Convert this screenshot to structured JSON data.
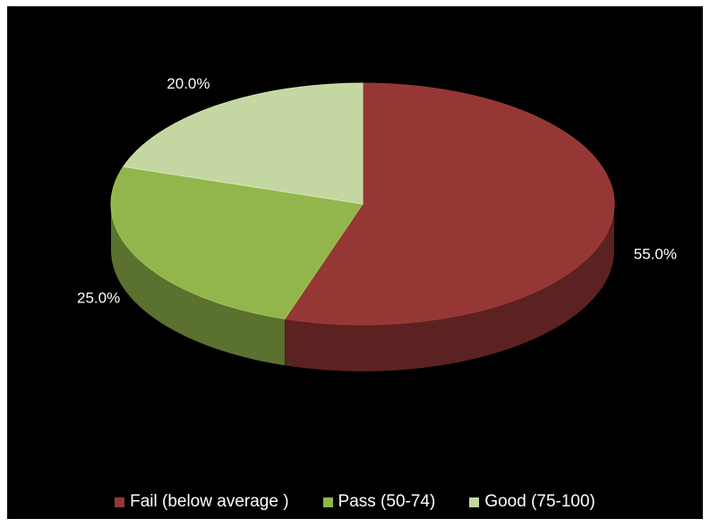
{
  "chart_data": {
    "type": "pie",
    "style": "3d",
    "title": "",
    "categories": [
      "Fail (below average )",
      "Pass  (50-74)",
      "Good (75-100)"
    ],
    "values": [
      55.0,
      25.0,
      20.0
    ],
    "labels": [
      "55.0%",
      "25.0%",
      "20.0%"
    ],
    "colors": [
      "#953735",
      "#92b64b",
      "#c4d6a2"
    ],
    "legend_position": "bottom",
    "background": "#000000"
  }
}
